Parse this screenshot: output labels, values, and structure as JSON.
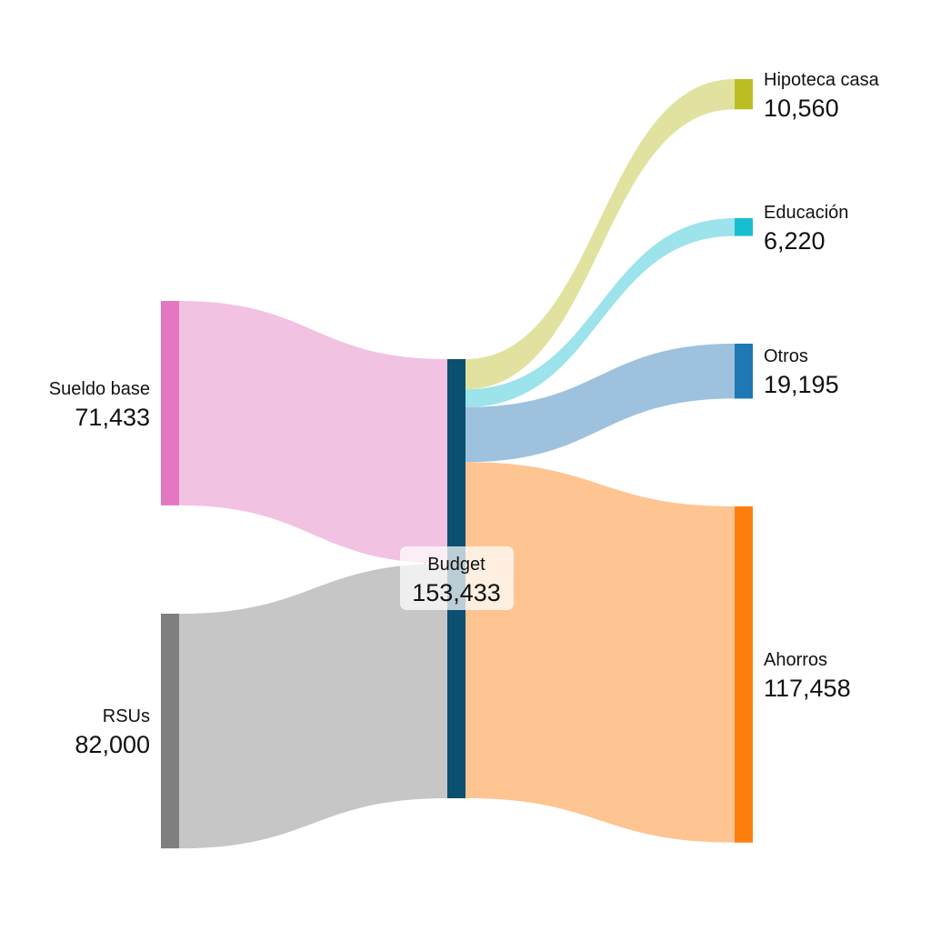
{
  "chart_data": {
    "type": "sankey",
    "nodes": [
      {
        "id": "sueldo",
        "label": "Sueldo base",
        "value": "71,433",
        "color": "#e377c2"
      },
      {
        "id": "rsus",
        "label": "RSUs",
        "value": "82,000",
        "color": "#7f7f7f"
      },
      {
        "id": "budget",
        "label": "Budget",
        "value": "153,433",
        "color": "#0b4f71"
      },
      {
        "id": "hipoteca",
        "label": "Hipoteca casa",
        "value": "10,560",
        "color": "#bcbd22"
      },
      {
        "id": "educacion",
        "label": "Educación",
        "value": "6,220",
        "color": "#17becf"
      },
      {
        "id": "otros",
        "label": "Otros",
        "value": "19,195",
        "color": "#1f77b4"
      },
      {
        "id": "ahorros",
        "label": "Ahorros",
        "value": "117,458",
        "color": "#ff7f0e"
      }
    ],
    "links": [
      {
        "source": "sueldo",
        "target": "budget",
        "value": 71433,
        "color": "#f2c2e3"
      },
      {
        "source": "rsus",
        "target": "budget",
        "value": 82000,
        "color": "#c6c6c6"
      },
      {
        "source": "budget",
        "target": "hipoteca",
        "value": 10560,
        "color": "#e2e2a0"
      },
      {
        "source": "budget",
        "target": "educacion",
        "value": 6220,
        "color": "#9ce3eb"
      },
      {
        "source": "budget",
        "target": "otros",
        "value": 19195,
        "color": "#9ec2de"
      },
      {
        "source": "budget",
        "target": "ahorros",
        "value": 117458,
        "color": "#fec593"
      }
    ]
  }
}
